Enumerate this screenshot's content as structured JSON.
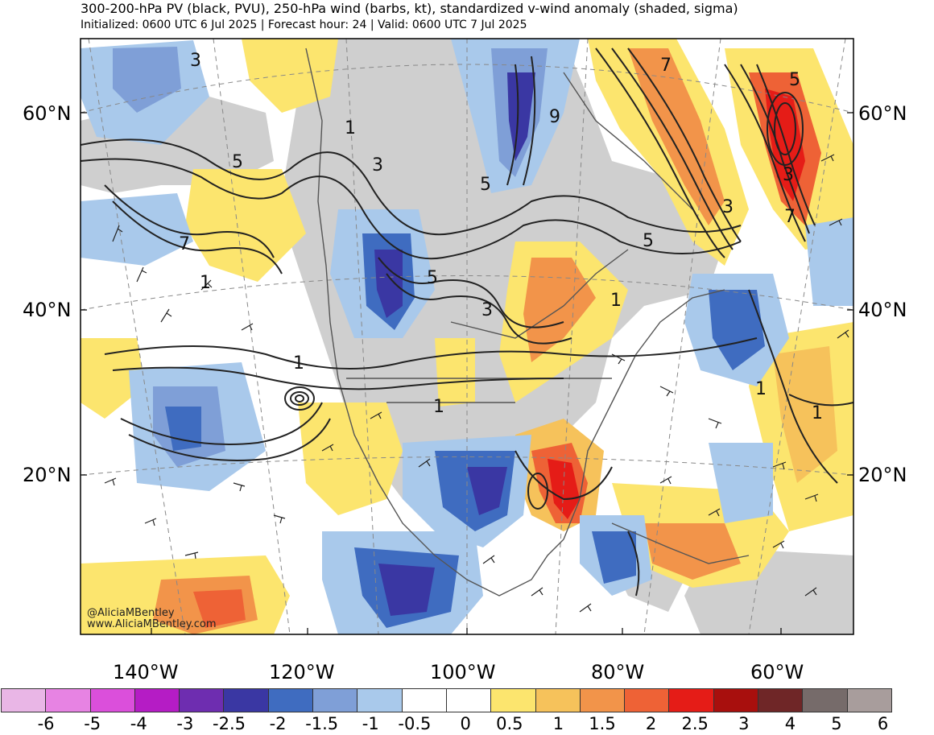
{
  "title": "300-200-hPa PV (black, PVU), 250-hPa wind (barbs, kt), standardized v-wind anomaly (shaded, sigma)",
  "subtitle": "Initialized: 0600 UTC 6 Jul 2025 | Forecast hour: 24 | Valid: 0600 UTC 7 Jul 2025",
  "lat_labels": [
    "60°N",
    "40°N",
    "20°N"
  ],
  "lon_labels": [
    "140°W",
    "120°W",
    "100°W",
    "80°W",
    "60°W"
  ],
  "credit": {
    "handle": "@AliciaMBentley",
    "website": "www.AliciaMBentley.com"
  },
  "contour_labels": [
    "3",
    "1",
    "9",
    "5",
    "7",
    "3",
    "5",
    "5",
    "3",
    "7",
    "3",
    "1",
    "5",
    "3",
    "1",
    "1",
    "1",
    "1",
    "7",
    "5",
    "1"
  ],
  "colorbar": {
    "colors": [
      "#e9b6e6",
      "#e783e3",
      "#db4fdb",
      "#b51cc5",
      "#6e2db0",
      "#3a37a3",
      "#3f6cc0",
      "#7f9fd7",
      "#a9c9eb",
      "#ffffff",
      "#ffffff",
      "#fce56e",
      "#f6c25b",
      "#f2944a",
      "#ee6236",
      "#e51c17",
      "#a80f0d",
      "#6f2627",
      "#766b6a",
      "#a89d9c"
    ],
    "ticks": [
      "-6",
      "-5",
      "-4",
      "-3",
      "-2.5",
      "-2",
      "-1.5",
      "-1",
      "-0.5",
      "0",
      "0.5",
      "1",
      "1.5",
      "2",
      "2.5",
      "3",
      "4",
      "5",
      "6"
    ]
  }
}
